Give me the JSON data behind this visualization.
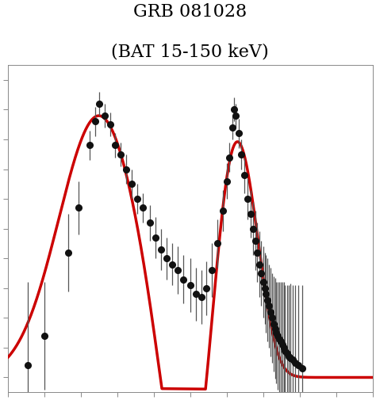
{
  "title_line1": "GRB 081028",
  "title_line2": "(BAT 15-150 keV)",
  "title_fontsize": 16,
  "background_color": "#ffffff",
  "line_color": "#cc0000",
  "dot_color": "#111111",
  "ecolor": "#555555",
  "figsize": [
    4.74,
    5.06
  ],
  "dpi": 100,
  "scatter_data": [
    [
      0.055,
      0.04,
      0.28
    ],
    [
      0.1,
      0.14,
      0.18
    ],
    [
      0.165,
      0.42,
      0.13
    ],
    [
      0.195,
      0.57,
      0.09
    ],
    [
      0.225,
      0.78,
      0.05
    ],
    [
      0.24,
      0.86,
      0.05
    ],
    [
      0.25,
      0.92,
      0.04
    ],
    [
      0.265,
      0.88,
      0.04
    ],
    [
      0.28,
      0.85,
      0.04
    ],
    [
      0.295,
      0.78,
      0.04
    ],
    [
      0.31,
      0.75,
      0.04
    ],
    [
      0.325,
      0.7,
      0.05
    ],
    [
      0.34,
      0.65,
      0.05
    ],
    [
      0.355,
      0.6,
      0.05
    ],
    [
      0.37,
      0.57,
      0.05
    ],
    [
      0.39,
      0.52,
      0.06
    ],
    [
      0.405,
      0.47,
      0.07
    ],
    [
      0.42,
      0.43,
      0.07
    ],
    [
      0.435,
      0.4,
      0.07
    ],
    [
      0.45,
      0.38,
      0.07
    ],
    [
      0.465,
      0.36,
      0.08
    ],
    [
      0.48,
      0.33,
      0.08
    ],
    [
      0.5,
      0.31,
      0.09
    ],
    [
      0.515,
      0.28,
      0.09
    ],
    [
      0.53,
      0.27,
      0.09
    ],
    [
      0.545,
      0.3,
      0.09
    ],
    [
      0.56,
      0.36,
      0.09
    ],
    [
      0.575,
      0.45,
      0.08
    ],
    [
      0.59,
      0.56,
      0.07
    ],
    [
      0.6,
      0.66,
      0.06
    ],
    [
      0.608,
      0.74,
      0.05
    ],
    [
      0.615,
      0.84,
      0.04
    ],
    [
      0.62,
      0.9,
      0.04
    ],
    [
      0.625,
      0.88,
      0.04
    ],
    [
      0.632,
      0.82,
      0.05
    ],
    [
      0.64,
      0.75,
      0.05
    ],
    [
      0.648,
      0.68,
      0.06
    ],
    [
      0.658,
      0.6,
      0.07
    ],
    [
      0.665,
      0.55,
      0.08
    ],
    [
      0.672,
      0.5,
      0.09
    ],
    [
      0.678,
      0.46,
      0.1
    ],
    [
      0.684,
      0.42,
      0.1
    ],
    [
      0.69,
      0.38,
      0.11
    ],
    [
      0.695,
      0.35,
      0.11
    ],
    [
      0.7,
      0.32,
      0.12
    ],
    [
      0.704,
      0.3,
      0.12
    ],
    [
      0.708,
      0.28,
      0.13
    ],
    [
      0.712,
      0.26,
      0.14
    ],
    [
      0.716,
      0.24,
      0.14
    ],
    [
      0.72,
      0.22,
      0.15
    ],
    [
      0.724,
      0.2,
      0.15
    ],
    [
      0.728,
      0.18,
      0.16
    ],
    [
      0.732,
      0.165,
      0.17
    ],
    [
      0.736,
      0.15,
      0.17
    ],
    [
      0.74,
      0.14,
      0.18
    ],
    [
      0.744,
      0.13,
      0.19
    ],
    [
      0.748,
      0.12,
      0.2
    ],
    [
      0.752,
      0.11,
      0.21
    ],
    [
      0.756,
      0.1,
      0.22
    ],
    [
      0.76,
      0.09,
      0.22
    ],
    [
      0.765,
      0.08,
      0.23
    ],
    [
      0.77,
      0.07,
      0.24
    ],
    [
      0.775,
      0.065,
      0.25
    ],
    [
      0.78,
      0.06,
      0.25
    ],
    [
      0.788,
      0.05,
      0.26
    ],
    [
      0.796,
      0.04,
      0.27
    ],
    [
      0.808,
      0.03,
      0.28
    ]
  ]
}
